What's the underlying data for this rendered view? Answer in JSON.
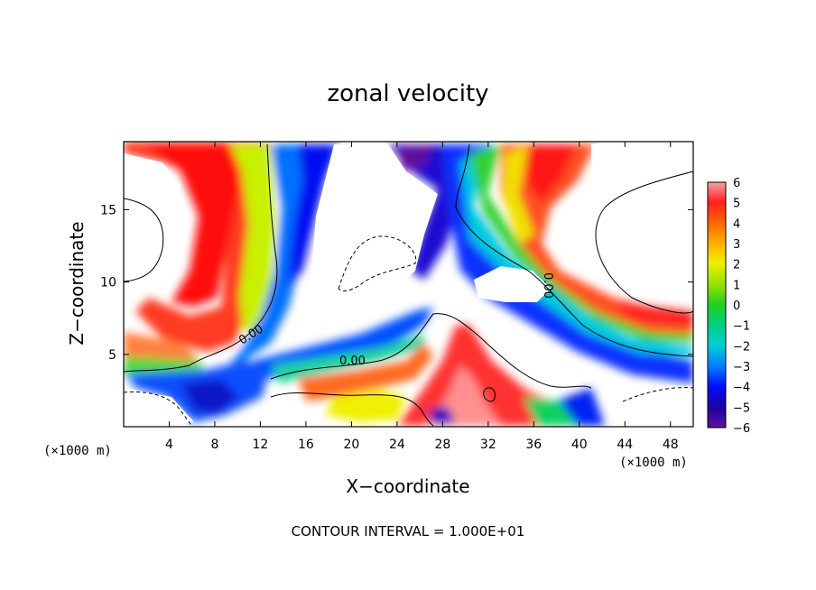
{
  "chart_data": {
    "type": "heatmap",
    "title": "zonal velocity",
    "xlabel": "X−coordinate",
    "ylabel": "Z−coordinate",
    "x_unit": "(×1000 m)",
    "y_unit": "(×1000 m)",
    "xlim": [
      0,
      50
    ],
    "ylim": [
      0,
      19.7
    ],
    "x_ticks": [
      4,
      8,
      12,
      16,
      20,
      24,
      28,
      32,
      36,
      40,
      44,
      48
    ],
    "y_ticks": [
      5,
      10,
      15
    ],
    "colorbar": {
      "min": -6,
      "max": 6,
      "ticks": [
        6,
        5,
        4,
        3,
        2,
        1,
        0,
        -1,
        -2,
        -3,
        -4,
        -5,
        -6
      ],
      "tick_labels": [
        "6",
        "5",
        "4",
        "3",
        "2",
        "1",
        "0",
        "−1",
        "−2",
        "−3",
        "−4",
        "−5",
        "−6"
      ]
    },
    "contour_labels": [
      "0.00",
      "0.00",
      "0.00"
    ],
    "footer": "CONTOUR INTERVAL = 1.000E+01",
    "regions": [
      {
        "name": "upper-left-positive",
        "value": 4.5
      },
      {
        "name": "left-mid-positive",
        "value": 1.5
      },
      {
        "name": "central-negative-column",
        "value": -4
      },
      {
        "name": "upper-central-negative",
        "value": -5
      },
      {
        "name": "right-negative-branch",
        "value": -4
      },
      {
        "name": "upper-right-positive",
        "value": 4
      },
      {
        "name": "lower-central-positive",
        "value": 4
      },
      {
        "name": "lower-left-negative",
        "value": -4
      }
    ]
  }
}
